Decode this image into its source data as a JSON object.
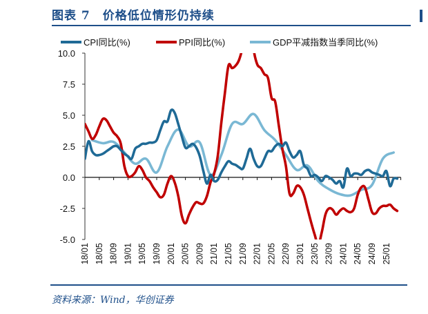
{
  "title": "图表 7　价格低位情形仍持续",
  "source": "资料来源：Wind，华创证券",
  "chart_data": {
    "type": "line",
    "title": "图表 7　价格低位情形仍持续",
    "xlabel": "",
    "ylabel": "",
    "ylim": [
      -5.0,
      10.0
    ],
    "yticks": [
      "10.0",
      "7.5",
      "5.0",
      "2.5",
      "0.0",
      "-2.5",
      "-5.0"
    ],
    "xticks": [
      "18/01",
      "18/05",
      "18/09",
      "19/01",
      "19/05",
      "19/09",
      "20/01",
      "20/05",
      "20/09",
      "21/01",
      "21/05",
      "21/09",
      "22/01",
      "22/05",
      "22/09",
      "23/01",
      "23/05",
      "23/09",
      "24/01",
      "24/05",
      "24/09",
      "25/01"
    ],
    "x_start": "2018-01",
    "grid": false,
    "legend_position": "top",
    "series": [
      {
        "name": "CPI同比(%)",
        "color": "#1f6a96",
        "frequency": "monthly",
        "values": [
          1.5,
          2.9,
          2.1,
          1.8,
          1.8,
          1.9,
          2.1,
          2.3,
          2.5,
          2.5,
          2.2,
          1.9,
          1.7,
          1.5,
          2.3,
          2.5,
          2.7,
          2.7,
          2.8,
          2.8,
          3.0,
          3.8,
          4.5,
          4.5,
          5.4,
          5.2,
          4.3,
          3.3,
          2.4,
          2.5,
          2.7,
          2.4,
          1.7,
          0.5,
          -0.5,
          0.2,
          -0.3,
          -0.2,
          0.4,
          0.9,
          1.3,
          1.1,
          1.0,
          0.8,
          0.7,
          1.5,
          2.3,
          1.5,
          0.9,
          0.9,
          1.5,
          2.1,
          2.1,
          2.5,
          2.7,
          2.5,
          2.8,
          2.1,
          1.6,
          1.8,
          2.1,
          1.0,
          0.7,
          0.1,
          0.2,
          0.0,
          -0.3,
          0.1,
          0.0,
          -0.2,
          -0.5,
          -0.3,
          -0.8,
          0.7,
          0.1,
          0.3,
          0.3,
          0.2,
          0.5,
          0.6,
          0.4,
          0.3,
          0.2,
          0.1,
          0.5,
          -0.7,
          -0.1,
          -0.1
        ]
      },
      {
        "name": "PPI同比(%)",
        "color": "#c00000",
        "frequency": "monthly",
        "values": [
          4.3,
          3.7,
          3.1,
          3.4,
          4.1,
          4.7,
          4.6,
          4.1,
          3.6,
          3.3,
          2.7,
          0.9,
          0.1,
          0.1,
          0.4,
          0.9,
          0.6,
          0.0,
          -0.3,
          -0.8,
          -1.2,
          -1.6,
          -1.4,
          -0.5,
          0.1,
          -0.4,
          -1.5,
          -3.1,
          -3.7,
          -3.0,
          -2.4,
          -2.0,
          -2.1,
          -2.1,
          -1.5,
          -0.4,
          0.3,
          1.7,
          4.4,
          6.8,
          9.0,
          8.8,
          9.0,
          9.5,
          10.7,
          13.5,
          12.9,
          10.3,
          9.1,
          8.8,
          8.3,
          8.0,
          6.4,
          6.1,
          4.2,
          2.3,
          0.9,
          -1.3,
          -1.3,
          -0.7,
          -0.8,
          -1.4,
          -2.5,
          -3.6,
          -4.6,
          -5.4,
          -4.4,
          -3.0,
          -2.5,
          -2.6,
          -3.0,
          -2.7,
          -2.5,
          -2.7,
          -2.8,
          -2.5,
          -1.4,
          -0.8,
          -0.8,
          -1.8,
          -2.8,
          -2.9,
          -2.5,
          -2.3,
          -2.3,
          -2.2,
          -2.5,
          -2.7
        ]
      },
      {
        "name": "GDP平减指数当季同比(%)",
        "color": "#7ab8d4",
        "frequency": "quarterly",
        "values": [
          3.0,
          2.75,
          2.85,
          2.0,
          1.1,
          1.5,
          0.4,
          2.5,
          3.85,
          2.5,
          2.8,
          0.2,
          1.8,
          4.3,
          4.3,
          5.1,
          3.8,
          3.0,
          1.8,
          0.6,
          0.95,
          -0.3,
          -0.95,
          -1.35,
          -1.45,
          -1.0,
          -0.6,
          1.5,
          2.0
        ]
      }
    ]
  }
}
